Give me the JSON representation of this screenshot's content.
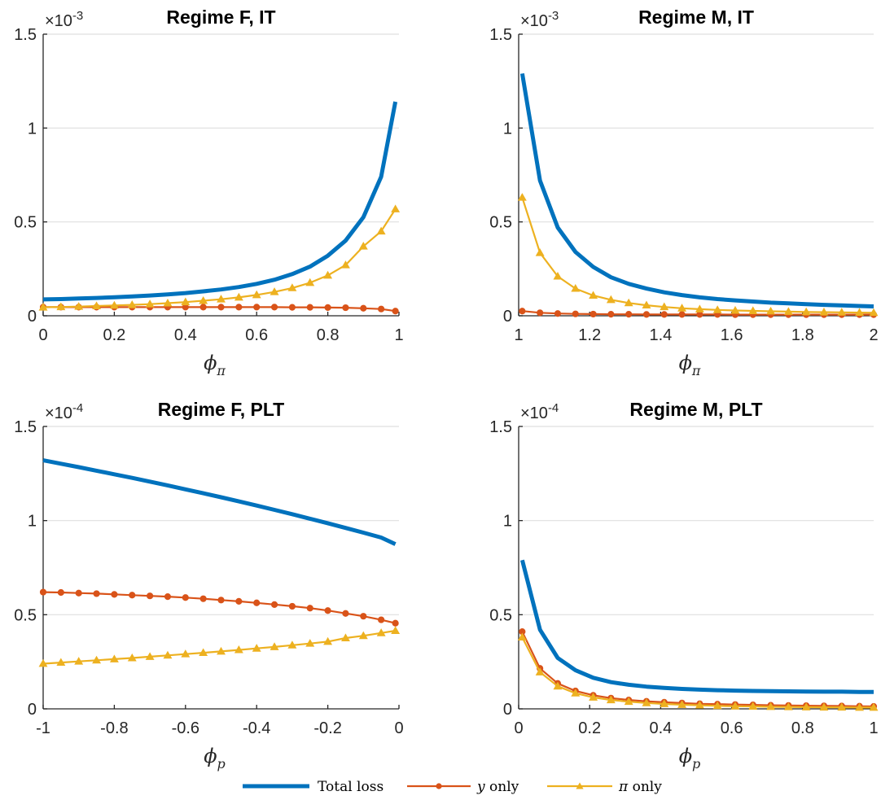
{
  "colors": {
    "total": "#0072BD",
    "y": "#D95319",
    "pi": "#EDB120",
    "axis": "#262626",
    "grid": "#dfdfdf"
  },
  "legend": {
    "entries": [
      {
        "key": "total",
        "label": "Total loss"
      },
      {
        "key": "y",
        "var": "y",
        "label": " only"
      },
      {
        "key": "pi",
        "var": "π",
        "label": " only"
      }
    ]
  },
  "chart_data": [
    {
      "type": "line",
      "title": "Regime F, IT",
      "xlabel": {
        "symbol": "ϕ",
        "sub": "π"
      },
      "multiplier": {
        "base": "×10",
        "exp": "-3"
      },
      "xlim": [
        0,
        1
      ],
      "ylim": [
        0,
        1.5
      ],
      "xticks": [
        0,
        0.2,
        0.4,
        0.6,
        0.8,
        1
      ],
      "xtick_labels": [
        "0",
        "0.2",
        "0.4",
        "0.6",
        "0.8",
        "1"
      ],
      "yticks": [
        0,
        0.5,
        1,
        1.5
      ],
      "ytick_labels": [
        "0",
        "0.5",
        "1",
        "1.5"
      ],
      "x": [
        0,
        0.05,
        0.1,
        0.15,
        0.2,
        0.25,
        0.3,
        0.35,
        0.4,
        0.45,
        0.5,
        0.55,
        0.6,
        0.65,
        0.7,
        0.75,
        0.8,
        0.85,
        0.9,
        0.95,
        0.99
      ],
      "series": [
        {
          "key": "total",
          "values": [
            0.087,
            0.089,
            0.092,
            0.095,
            0.099,
            0.103,
            0.108,
            0.114,
            0.121,
            0.13,
            0.14,
            0.153,
            0.17,
            0.192,
            0.222,
            0.262,
            0.32,
            0.4,
            0.525,
            0.74,
            1.14
          ]
        },
        {
          "key": "y",
          "values": [
            0.046,
            0.046,
            0.046,
            0.046,
            0.046,
            0.046,
            0.046,
            0.046,
            0.046,
            0.046,
            0.046,
            0.046,
            0.046,
            0.046,
            0.045,
            0.045,
            0.044,
            0.043,
            0.04,
            0.036,
            0.025
          ]
        },
        {
          "key": "pi",
          "values": [
            0.045,
            0.047,
            0.049,
            0.052,
            0.055,
            0.058,
            0.062,
            0.067,
            0.073,
            0.08,
            0.088,
            0.098,
            0.111,
            0.127,
            0.148,
            0.176,
            0.215,
            0.27,
            0.37,
            0.45,
            0.568
          ]
        }
      ]
    },
    {
      "type": "line",
      "title": "Regime M, IT",
      "xlabel": {
        "symbol": "ϕ",
        "sub": "π"
      },
      "multiplier": {
        "base": "×10",
        "exp": "-3"
      },
      "xlim": [
        1,
        2
      ],
      "ylim": [
        0,
        1.5
      ],
      "xticks": [
        1,
        1.2,
        1.4,
        1.6,
        1.8,
        2
      ],
      "xtick_labels": [
        "1",
        "1.2",
        "1.4",
        "1.6",
        "1.8",
        "2"
      ],
      "yticks": [
        0,
        0.5,
        1,
        1.5
      ],
      "ytick_labels": [
        "0",
        "0.5",
        "1",
        "1.5"
      ],
      "x": [
        1.01,
        1.06,
        1.11,
        1.16,
        1.21,
        1.26,
        1.31,
        1.36,
        1.41,
        1.46,
        1.51,
        1.56,
        1.61,
        1.66,
        1.71,
        1.76,
        1.81,
        1.86,
        1.91,
        1.96,
        2.0
      ],
      "series": [
        {
          "key": "total",
          "values": [
            1.29,
            0.72,
            0.47,
            0.34,
            0.26,
            0.205,
            0.17,
            0.145,
            0.125,
            0.11,
            0.098,
            0.089,
            0.082,
            0.076,
            0.07,
            0.066,
            0.062,
            0.058,
            0.055,
            0.052,
            0.05
          ]
        },
        {
          "key": "y",
          "values": [
            0.025,
            0.016,
            0.012,
            0.01,
            0.009,
            0.008,
            0.008,
            0.007,
            0.007,
            0.007,
            0.007,
            0.007,
            0.006,
            0.006,
            0.006,
            0.006,
            0.006,
            0.006,
            0.006,
            0.006,
            0.006
          ]
        },
        {
          "key": "pi",
          "values": [
            0.63,
            0.335,
            0.21,
            0.145,
            0.108,
            0.085,
            0.068,
            0.056,
            0.047,
            0.04,
            0.035,
            0.031,
            0.028,
            0.026,
            0.024,
            0.022,
            0.02,
            0.019,
            0.018,
            0.017,
            0.016
          ]
        }
      ]
    },
    {
      "type": "line",
      "title": "Regime F, PLT",
      "xlabel": {
        "symbol": "ϕ",
        "sub": "p"
      },
      "multiplier": {
        "base": "×10",
        "exp": "-4"
      },
      "xlim": [
        -1,
        0
      ],
      "ylim": [
        0,
        1.5
      ],
      "xticks": [
        -1,
        -0.8,
        -0.6,
        -0.4,
        -0.2,
        0
      ],
      "xtick_labels": [
        "-1",
        "-0.8",
        "-0.6",
        "-0.4",
        "-0.2",
        "0"
      ],
      "yticks": [
        0,
        0.5,
        1,
        1.5
      ],
      "ytick_labels": [
        "0",
        "0.5",
        "1",
        "1.5"
      ],
      "x": [
        -1,
        -0.95,
        -0.9,
        -0.85,
        -0.8,
        -0.75,
        -0.7,
        -0.65,
        -0.6,
        -0.55,
        -0.5,
        -0.45,
        -0.4,
        -0.35,
        -0.3,
        -0.25,
        -0.2,
        -0.15,
        -0.1,
        -0.05,
        -0.01
      ],
      "series": [
        {
          "key": "total",
          "values": [
            1.32,
            1.302,
            1.284,
            1.265,
            1.246,
            1.227,
            1.207,
            1.187,
            1.166,
            1.145,
            1.124,
            1.102,
            1.08,
            1.057,
            1.034,
            1.01,
            0.986,
            0.961,
            0.936,
            0.91,
            0.875
          ]
        },
        {
          "key": "y",
          "values": [
            0.62,
            0.618,
            0.615,
            0.612,
            0.608,
            0.604,
            0.6,
            0.596,
            0.591,
            0.585,
            0.578,
            0.571,
            0.563,
            0.554,
            0.545,
            0.535,
            0.522,
            0.507,
            0.492,
            0.473,
            0.455
          ]
        },
        {
          "key": "pi",
          "values": [
            0.24,
            0.246,
            0.252,
            0.258,
            0.264,
            0.27,
            0.277,
            0.284,
            0.291,
            0.298,
            0.305,
            0.313,
            0.321,
            0.329,
            0.338,
            0.347,
            0.357,
            0.376,
            0.388,
            0.403,
            0.415
          ]
        }
      ]
    },
    {
      "type": "line",
      "title": "Regime M, PLT",
      "xlabel": {
        "symbol": "ϕ",
        "sub": "p"
      },
      "multiplier": {
        "base": "×10",
        "exp": "-4"
      },
      "xlim": [
        0,
        1
      ],
      "ylim": [
        0,
        1.5
      ],
      "xticks": [
        0,
        0.2,
        0.4,
        0.6,
        0.8,
        1
      ],
      "xtick_labels": [
        "0",
        "0.2",
        "0.4",
        "0.6",
        "0.8",
        "1"
      ],
      "yticks": [
        0,
        0.5,
        1,
        1.5
      ],
      "ytick_labels": [
        "0",
        "0.5",
        "1",
        "1.5"
      ],
      "x": [
        0.01,
        0.06,
        0.11,
        0.16,
        0.21,
        0.26,
        0.31,
        0.36,
        0.41,
        0.46,
        0.51,
        0.56,
        0.61,
        0.66,
        0.71,
        0.76,
        0.81,
        0.86,
        0.91,
        0.96,
        1.0
      ],
      "series": [
        {
          "key": "total",
          "values": [
            0.79,
            0.42,
            0.27,
            0.205,
            0.165,
            0.142,
            0.128,
            0.118,
            0.111,
            0.106,
            0.102,
            0.099,
            0.097,
            0.095,
            0.094,
            0.093,
            0.092,
            0.091,
            0.091,
            0.09,
            0.09
          ]
        },
        {
          "key": "y",
          "values": [
            0.41,
            0.215,
            0.135,
            0.095,
            0.072,
            0.057,
            0.047,
            0.04,
            0.035,
            0.031,
            0.027,
            0.025,
            0.023,
            0.021,
            0.019,
            0.018,
            0.017,
            0.016,
            0.015,
            0.014,
            0.013
          ]
        },
        {
          "key": "pi",
          "values": [
            0.38,
            0.195,
            0.12,
            0.083,
            0.061,
            0.047,
            0.038,
            0.031,
            0.026,
            0.022,
            0.019,
            0.016,
            0.014,
            0.013,
            0.011,
            0.01,
            0.009,
            0.008,
            0.008,
            0.007,
            0.007
          ]
        }
      ]
    }
  ]
}
